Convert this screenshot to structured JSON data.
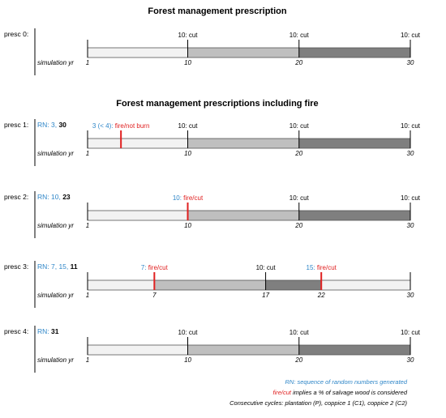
{
  "colors": {
    "light": "#f2f2f2",
    "mid": "#bfbfbf",
    "dark": "#7f7f7f",
    "fire": "#e02020",
    "rn": "#2e86c8",
    "line": "#000000"
  },
  "titles": {
    "top": "Forest management prescription",
    "fire": "Forest management prescriptions including fire"
  },
  "sim_label": "simulation yr",
  "prescriptions": [
    {
      "label": "presc 0:",
      "rn": null,
      "segments": [
        {
          "from": 1,
          "to": 10,
          "shade": "light"
        },
        {
          "from": 10,
          "to": 20,
          "shade": "mid"
        },
        {
          "from": 20,
          "to": 30,
          "shade": "dark"
        }
      ],
      "events": [
        {
          "year": 10,
          "text": "10: cut",
          "type": "cut"
        },
        {
          "year": 20,
          "text": "10: cut",
          "type": "cut"
        },
        {
          "year": 30,
          "text": "10: cut",
          "type": "cut"
        }
      ],
      "ticks": [
        "1",
        "10",
        "20",
        "30"
      ],
      "tick_years": [
        1,
        10,
        20,
        30
      ]
    },
    {
      "label": "presc 1:",
      "rn": {
        "prefix": "RN: ",
        "blue": "3, ",
        "bold": "30"
      },
      "segments": [
        {
          "from": 1,
          "to": 10,
          "shade": "light"
        },
        {
          "from": 10,
          "to": 20,
          "shade": "mid"
        },
        {
          "from": 20,
          "to": 30,
          "shade": "dark"
        }
      ],
      "events": [
        {
          "year": 4,
          "text_blue": "3 (< 4): ",
          "text_red": "fire/not burn",
          "type": "fire"
        },
        {
          "year": 10,
          "text": "10: cut",
          "type": "cut"
        },
        {
          "year": 20,
          "text": "10: cut",
          "type": "cut"
        },
        {
          "year": 30,
          "text": "10: cut",
          "type": "cut"
        }
      ],
      "ticks": [
        "1",
        "10",
        "20",
        "30"
      ],
      "tick_years": [
        1,
        10,
        20,
        30
      ]
    },
    {
      "label": "presc 2:",
      "rn": {
        "prefix": "RN: ",
        "blue": "10, ",
        "bold": "23"
      },
      "segments": [
        {
          "from": 1,
          "to": 10,
          "shade": "light"
        },
        {
          "from": 10,
          "to": 20,
          "shade": "mid"
        },
        {
          "from": 20,
          "to": 30,
          "shade": "dark"
        }
      ],
      "events": [
        {
          "year": 10,
          "text_blue": "10: ",
          "text_red": "fire/cut",
          "type": "fire"
        },
        {
          "year": 20,
          "text": "10: cut",
          "type": "cut"
        },
        {
          "year": 30,
          "text": "10: cut",
          "type": "cut"
        }
      ],
      "ticks": [
        "1",
        "10",
        "20",
        "30"
      ],
      "tick_years": [
        1,
        10,
        20,
        30
      ]
    },
    {
      "label": "presc 3:",
      "rn": {
        "prefix": "RN: ",
        "blue": "7, 15, ",
        "bold": "11"
      },
      "segments": [
        {
          "from": 1,
          "to": 7,
          "shade": "light"
        },
        {
          "from": 7,
          "to": 17,
          "shade": "mid"
        },
        {
          "from": 17,
          "to": 22,
          "shade": "dark"
        },
        {
          "from": 22,
          "to": 30,
          "shade": "light"
        }
      ],
      "events": [
        {
          "year": 7,
          "text_blue": "7: ",
          "text_red": "fire/cut",
          "type": "fire"
        },
        {
          "year": 17,
          "text": "10: cut",
          "type": "cut"
        },
        {
          "year": 22,
          "text_blue": "15: ",
          "text_red": "fire/cut",
          "type": "fire"
        },
        {
          "year": 30,
          "text": "",
          "type": "end"
        }
      ],
      "ticks": [
        "1",
        "7",
        "17",
        "22",
        "30"
      ],
      "tick_years": [
        1,
        7,
        17,
        22,
        30
      ]
    },
    {
      "label": "presc 4:",
      "rn": {
        "prefix": "RN: ",
        "blue": "",
        "bold": "31"
      },
      "segments": [
        {
          "from": 1,
          "to": 10,
          "shade": "light"
        },
        {
          "from": 10,
          "to": 20,
          "shade": "mid"
        },
        {
          "from": 20,
          "to": 30,
          "shade": "dark"
        }
      ],
      "events": [
        {
          "year": 10,
          "text": "10: cut",
          "type": "cut"
        },
        {
          "year": 20,
          "text": "10: cut",
          "type": "cut"
        },
        {
          "year": 30,
          "text": "10: cut",
          "type": "cut"
        }
      ],
      "ticks": [
        "1",
        "10",
        "20",
        "30"
      ],
      "tick_years": [
        1,
        10,
        20,
        30
      ]
    }
  ],
  "legend": {
    "rn_line": "RN: sequence of random numbers generated",
    "fire_word": "fire/cut",
    "fire_rest": " implies a % of salvage wood is considered",
    "cycles": "Consecutive cycles: plantation (P), coppice 1 (C1), coppice 2 (C2)"
  }
}
